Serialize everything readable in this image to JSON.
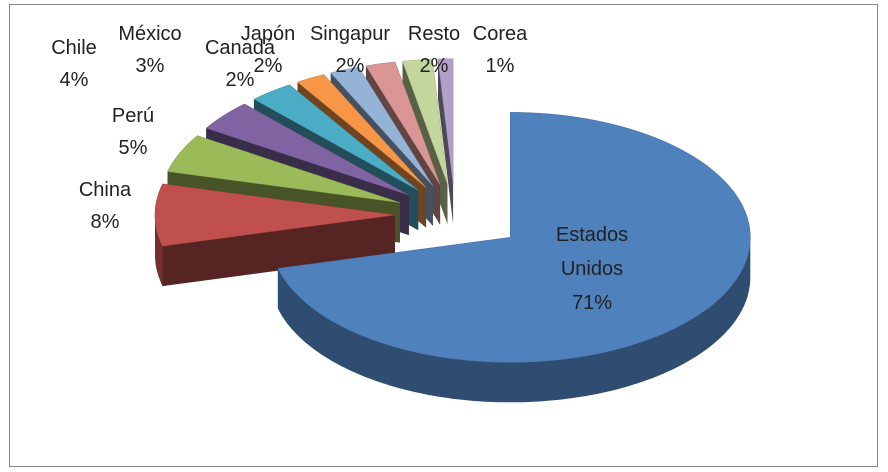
{
  "chart_data": {
    "type": "pie3d",
    "categories": [
      "Estados Unidos",
      "China",
      "Perú",
      "Chile",
      "México",
      "Canadá",
      "Japón",
      "Singapur",
      "Resto",
      "Corea"
    ],
    "values": [
      71,
      8,
      5,
      4,
      3,
      2,
      2,
      2,
      2,
      1
    ],
    "value_labels": [
      "71%",
      "8%",
      "5%",
      "4%",
      "3%",
      "2%",
      "2%",
      "2%",
      "2%",
      "1%"
    ],
    "colors": [
      "#4F81BD",
      "#C0504D",
      "#9BBB59",
      "#8064A2",
      "#4BACC6",
      "#F79646",
      "#95B3D7",
      "#D99694",
      "#C3D69B",
      "#B2A1C7"
    ]
  }
}
